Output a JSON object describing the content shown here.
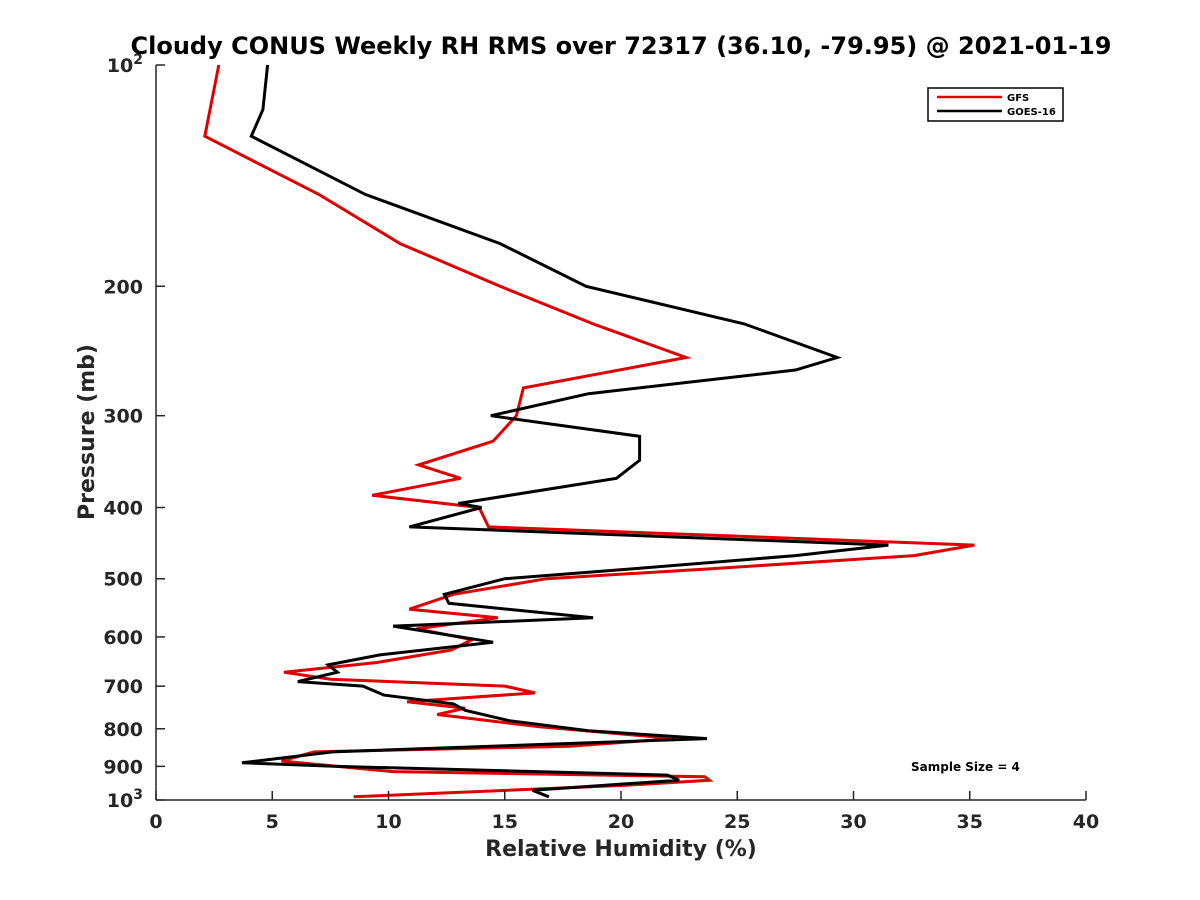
{
  "chart_data": {
    "type": "line",
    "title": "Cloudy CONUS Weekly RH RMS over 72317 (36.10, -79.95) @ 2021-01-19",
    "xlabel": "Relative Humidity (%)",
    "ylabel": "Pressure (mb)",
    "xlim": [
      0,
      40
    ],
    "ylim": [
      100,
      1000
    ],
    "y_scale": "log",
    "y_reversed": true,
    "grid": false,
    "legend_position": "top-right",
    "x_ticks": [
      "0",
      "5",
      "10",
      "15",
      "20",
      "25",
      "30",
      "35",
      "40"
    ],
    "y_ticks": [
      {
        "value": 100,
        "base": "10",
        "exp": "2"
      },
      {
        "value": 200,
        "label": "200"
      },
      {
        "value": 300,
        "label": "300"
      },
      {
        "value": 400,
        "label": "400"
      },
      {
        "value": 500,
        "label": "500"
      },
      {
        "value": 600,
        "label": "600"
      },
      {
        "value": 700,
        "label": "700"
      },
      {
        "value": 800,
        "label": "800"
      },
      {
        "value": 900,
        "label": "900"
      },
      {
        "value": 1000,
        "base": "10",
        "exp": "3"
      }
    ],
    "annotation": "Sample Size = 4",
    "series": [
      {
        "name": "GFS",
        "color": "#e00000",
        "points": [
          [
            2.7,
            100
          ],
          [
            2.1,
            125
          ],
          [
            7.0,
            150
          ],
          [
            10.5,
            175
          ],
          [
            14.8,
            200
          ],
          [
            18.8,
            225
          ],
          [
            22.8,
            250
          ],
          [
            15.8,
            275
          ],
          [
            15.5,
            300
          ],
          [
            14.5,
            325
          ],
          [
            11.3,
            350
          ],
          [
            13.1,
            365
          ],
          [
            9.3,
            385
          ],
          [
            13.9,
            400
          ],
          [
            14.3,
            425
          ],
          [
            35.2,
            450
          ],
          [
            32.6,
            465
          ],
          [
            23.7,
            485
          ],
          [
            16.8,
            500
          ],
          [
            12.8,
            525
          ],
          [
            10.9,
            550
          ],
          [
            14.7,
            565
          ],
          [
            11.2,
            585
          ],
          [
            13.6,
            605
          ],
          [
            12.7,
            625
          ],
          [
            9.5,
            650
          ],
          [
            5.5,
            670
          ],
          [
            7.5,
            685
          ],
          [
            15.0,
            700
          ],
          [
            16.3,
            715
          ],
          [
            10.8,
            735
          ],
          [
            13.3,
            750
          ],
          [
            12.1,
            765
          ],
          [
            16.5,
            795
          ],
          [
            22.3,
            825
          ],
          [
            17.8,
            845
          ],
          [
            6.8,
            860
          ],
          [
            5.4,
            885
          ],
          [
            7.8,
            900
          ],
          [
            10.2,
            915
          ],
          [
            23.6,
            930
          ],
          [
            23.8,
            940
          ],
          [
            20.2,
            955
          ],
          [
            8.5,
            990
          ]
        ]
      },
      {
        "name": "GOES-16",
        "color": "#000000",
        "points": [
          [
            4.8,
            100
          ],
          [
            4.6,
            115
          ],
          [
            4.1,
            125
          ],
          [
            9.0,
            150
          ],
          [
            14.8,
            175
          ],
          [
            18.5,
            200
          ],
          [
            25.3,
            225
          ],
          [
            29.3,
            250
          ],
          [
            27.5,
            260
          ],
          [
            18.6,
            280
          ],
          [
            14.4,
            300
          ],
          [
            20.8,
            320
          ],
          [
            20.8,
            345
          ],
          [
            19.8,
            365
          ],
          [
            13.0,
            395
          ],
          [
            14.0,
            400
          ],
          [
            10.9,
            425
          ],
          [
            31.5,
            450
          ],
          [
            27.5,
            465
          ],
          [
            20.4,
            485
          ],
          [
            15.0,
            500
          ],
          [
            12.4,
            525
          ],
          [
            12.6,
            540
          ],
          [
            18.8,
            565
          ],
          [
            10.2,
            580
          ],
          [
            14.5,
            610
          ],
          [
            9.6,
            635
          ],
          [
            7.4,
            655
          ],
          [
            7.8,
            670
          ],
          [
            6.1,
            690
          ],
          [
            8.9,
            700
          ],
          [
            9.8,
            720
          ],
          [
            12.8,
            740
          ],
          [
            13.3,
            755
          ],
          [
            15.2,
            780
          ],
          [
            18.6,
            805
          ],
          [
            23.7,
            825
          ],
          [
            7.6,
            860
          ],
          [
            3.7,
            890
          ],
          [
            7.8,
            900
          ],
          [
            22.0,
            925
          ],
          [
            22.5,
            940
          ],
          [
            16.2,
            970
          ],
          [
            16.9,
            990
          ]
        ]
      }
    ]
  }
}
